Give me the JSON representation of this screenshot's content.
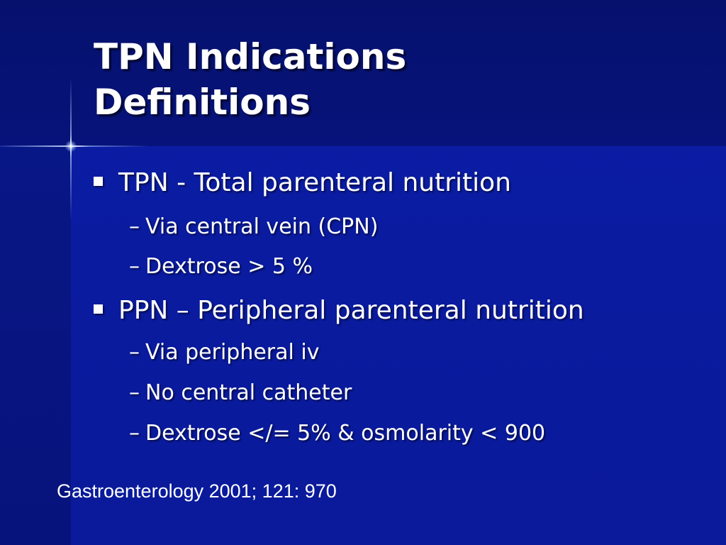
{
  "slide": {
    "title_lines": [
      "TPN Indications",
      "Definitions"
    ],
    "bullets": [
      {
        "text": "TPN - Total parenteral nutrition",
        "subitems": [
          "Via central vein (CPN)",
          "Dextrose > 5 %"
        ]
      },
      {
        "text": "PPN – Peripheral parenteral nutrition",
        "subitems": [
          "Via peripheral iv",
          "No central catheter",
          "Dextrose </= 5% & osmolarity < 900"
        ]
      }
    ],
    "sub_marker": "–",
    "citation": "Gastroenterology 2001; 121: 970"
  },
  "colors": {
    "background": "#0a1a9c",
    "header_band": "#06116e",
    "text": "#ffffff"
  }
}
